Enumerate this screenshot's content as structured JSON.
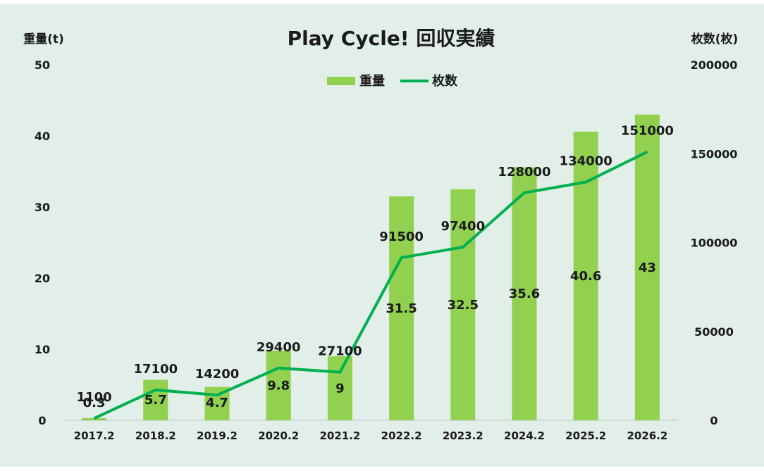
{
  "colors": {
    "bar": "#92d050",
    "line": "#00b050",
    "background": "#e2efe9"
  },
  "chart_data": {
    "type": "bar",
    "title": "Play Cycle! 回収実績",
    "xlabel": "",
    "y_left_label": "重量(t)",
    "y_right_label": "枚数(枚)",
    "categories": [
      "2017.2",
      "2018.2",
      "2019.2",
      "2020.2",
      "2021.2",
      "2022.2",
      "2023.2",
      "2024.2",
      "2025.2",
      "2026.2"
    ],
    "y_left_ticks": [
      "0",
      "10",
      "20",
      "30",
      "40",
      "50"
    ],
    "y_right_ticks": [
      "0",
      "50000",
      "100000",
      "150000",
      "200000"
    ],
    "ylim_left": [
      0,
      50
    ],
    "ylim_right": [
      0,
      200000
    ],
    "grid": false,
    "legend_position": "top-center",
    "series": [
      {
        "name": "重量",
        "type": "bar",
        "axis": "left",
        "values": [
          0.3,
          5.7,
          4.7,
          9.8,
          9,
          31.5,
          32.5,
          35.6,
          40.6,
          43
        ],
        "labels": [
          "0.3",
          "5.7",
          "4.7",
          "9.8",
          "9",
          "31.5",
          "32.5",
          "35.6",
          "40.6",
          "43"
        ]
      },
      {
        "name": "枚数",
        "type": "line",
        "axis": "right",
        "values": [
          1100,
          17100,
          14200,
          29400,
          27100,
          91500,
          97400,
          128000,
          134000,
          151000
        ],
        "labels": [
          "1100",
          "17100",
          "14200",
          "29400",
          "27100",
          "91500",
          "97400",
          "128000",
          "134000",
          "151000"
        ]
      }
    ]
  }
}
